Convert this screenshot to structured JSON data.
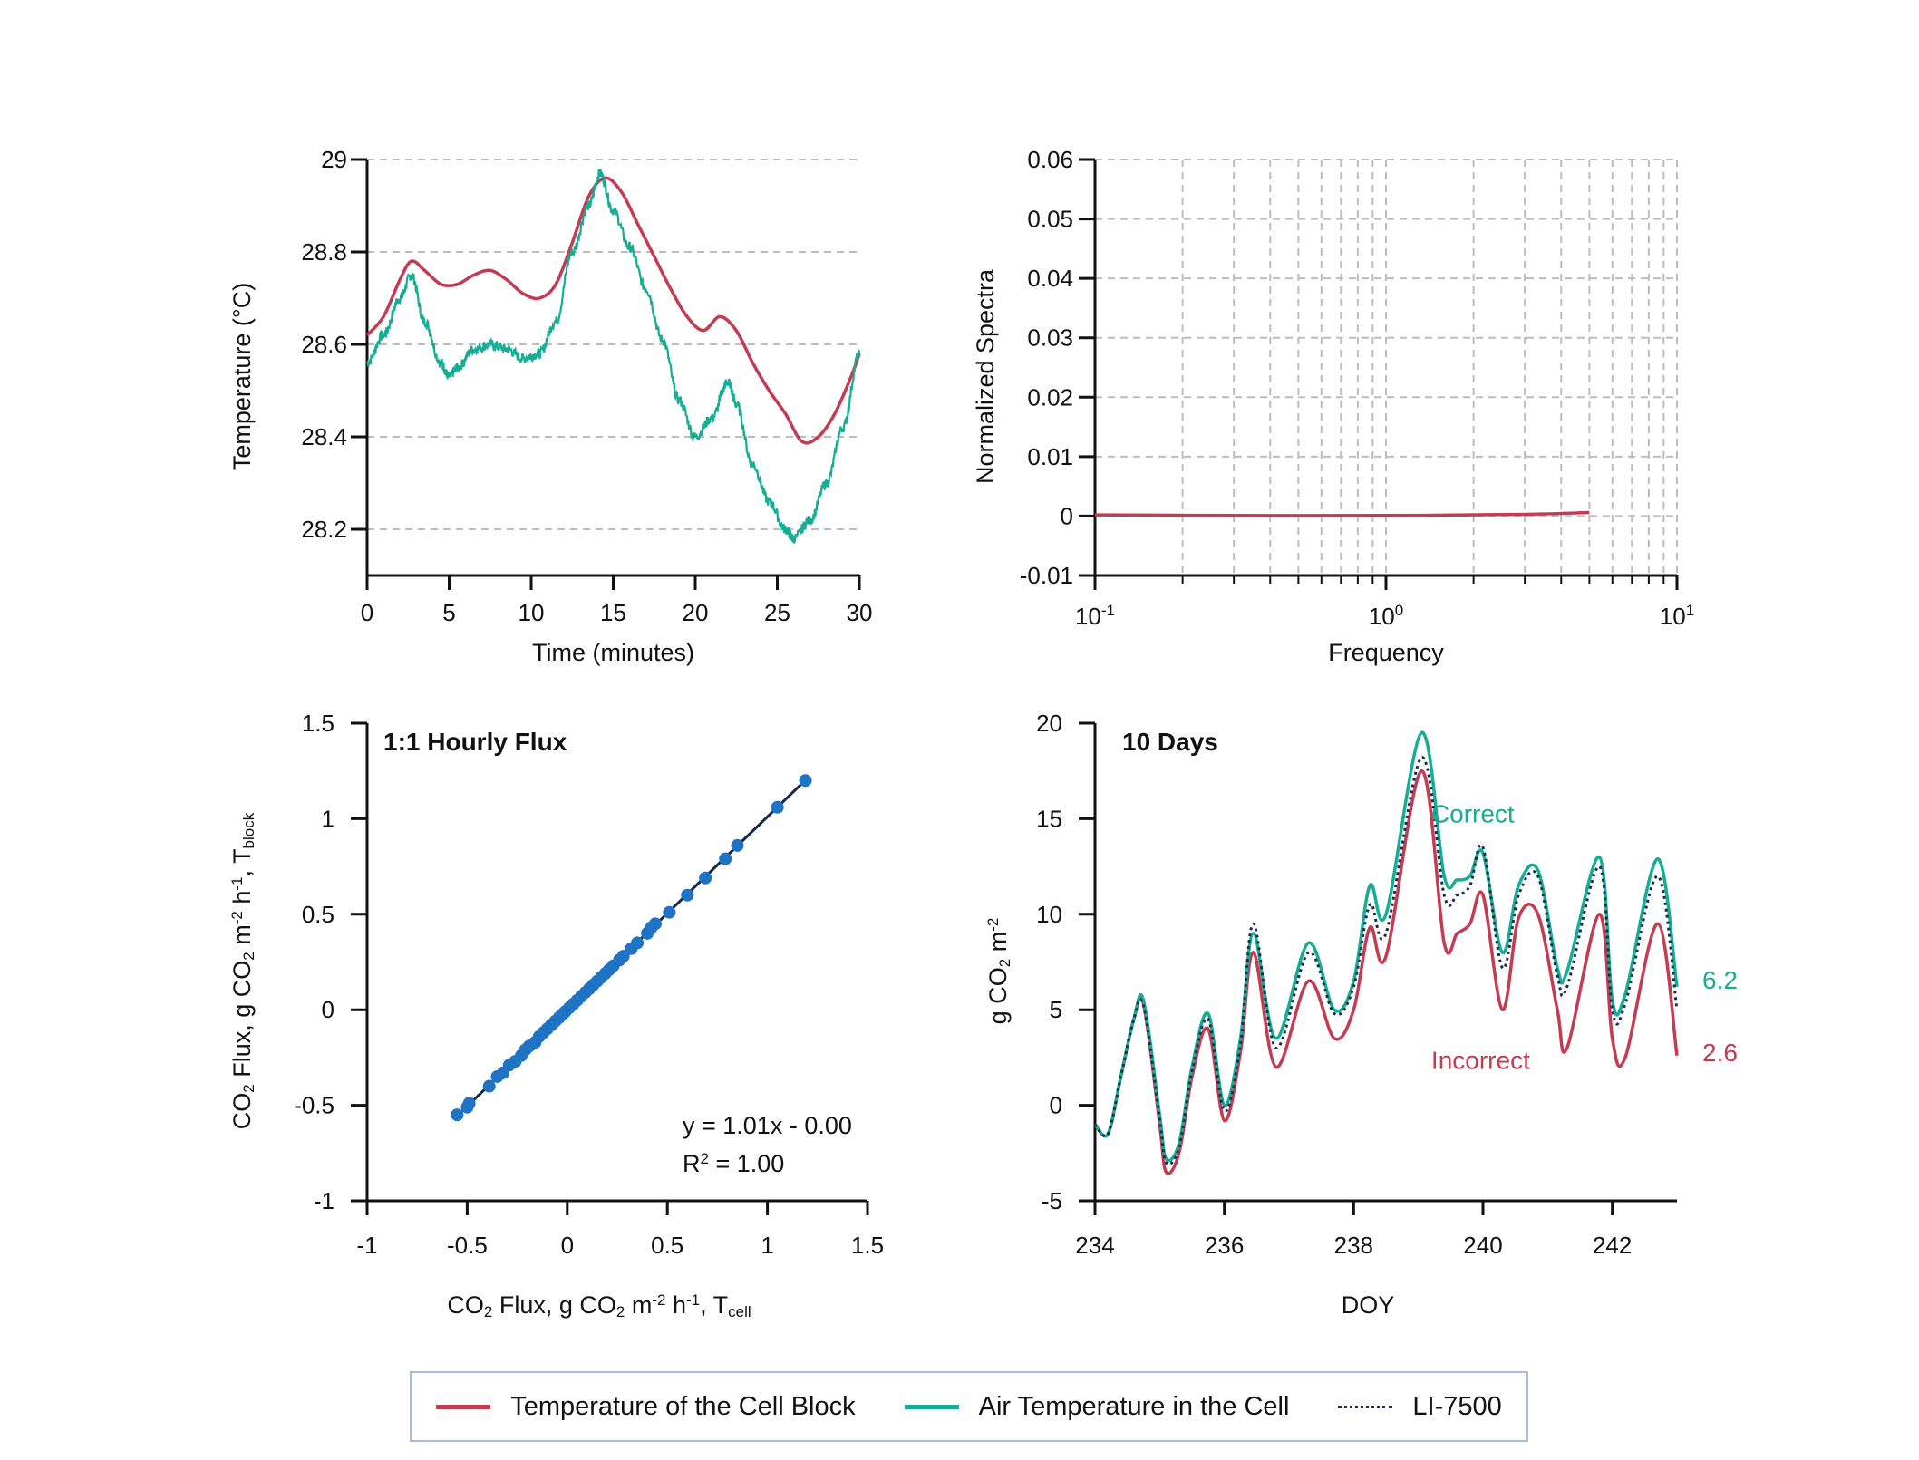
{
  "colors": {
    "block": "#c33c52",
    "cell": "#15ad94",
    "li7500": "#1b2a4e",
    "scatter": "#1f73c4",
    "grid": "#bdbdbd",
    "legend_border": "#a7bdd8"
  },
  "legend": {
    "items": [
      {
        "label": "Temperature of the Cell Block",
        "style": "solid",
        "color_key": "block"
      },
      {
        "label": "Air Temperature in the Cell",
        "style": "solid",
        "color_key": "cell"
      },
      {
        "label": "LI-7500",
        "style": "dotted",
        "color_key": "li7500"
      }
    ]
  },
  "chart_data": [
    {
      "id": "temperature",
      "type": "line",
      "title": "",
      "xlabel": "Time (minutes)",
      "ylabel": "Temperature (°C)",
      "xlim": [
        0,
        30
      ],
      "ylim": [
        28.1,
        29
      ],
      "xticks": [
        0,
        5,
        10,
        15,
        20,
        25,
        30
      ],
      "yticks": [
        28.2,
        28.4,
        28.6,
        28.8,
        29
      ],
      "ytick_labels": [
        "28.2",
        "28.4",
        "28.6",
        "28.8",
        "29"
      ],
      "grid": "horizontal-dashed",
      "series": [
        {
          "name": "Temperature of the Cell Block",
          "x": [
            0,
            1,
            2,
            2.7,
            3.5,
            4.5,
            5.5,
            6.5,
            7.5,
            8.5,
            9.5,
            10.5,
            11.5,
            12.5,
            13.5,
            14.5,
            15.5,
            16.5,
            17.5,
            18.5,
            19.5,
            20.5,
            21.5,
            22.5,
            23.5,
            24.5,
            25.5,
            26.5,
            27.5,
            28.5,
            29.5,
            30
          ],
          "y": [
            28.62,
            28.66,
            28.74,
            28.78,
            28.76,
            28.73,
            28.73,
            28.75,
            28.76,
            28.74,
            28.71,
            28.7,
            28.73,
            28.82,
            28.92,
            28.96,
            28.93,
            28.86,
            28.79,
            28.72,
            28.66,
            28.63,
            28.66,
            28.63,
            28.56,
            28.5,
            28.45,
            28.39,
            28.4,
            28.45,
            28.53,
            28.58
          ]
        },
        {
          "name": "Air Temperature in the Cell",
          "x": [
            0,
            1,
            2,
            2.7,
            3.5,
            4.5,
            5,
            5.5,
            6.5,
            7.5,
            8.5,
            9.5,
            10.5,
            11.5,
            12.5,
            13.5,
            14.2,
            15,
            16,
            17,
            18,
            19,
            20,
            21,
            22,
            22.5,
            23.5,
            24.5,
            25.5,
            26,
            27,
            28,
            29,
            30
          ],
          "y": [
            28.56,
            28.62,
            28.7,
            28.75,
            28.65,
            28.56,
            28.53,
            28.55,
            28.59,
            28.6,
            28.59,
            28.57,
            28.58,
            28.65,
            28.8,
            28.9,
            28.97,
            28.89,
            28.81,
            28.72,
            28.61,
            28.48,
            28.4,
            28.44,
            28.52,
            28.47,
            28.34,
            28.26,
            28.2,
            28.18,
            28.22,
            28.3,
            28.42,
            28.58
          ],
          "noisy": true
        }
      ]
    },
    {
      "id": "spectra",
      "type": "line",
      "title": "",
      "xlabel": "Frequency",
      "ylabel": "Normalized Spectra",
      "xscale": "log",
      "xlim": [
        0.1,
        10
      ],
      "ylim": [
        -0.01,
        0.06
      ],
      "yticks": [
        -0.01,
        0,
        0.01,
        0.02,
        0.03,
        0.04,
        0.05,
        0.06
      ],
      "ytick_labels": [
        "-0.01",
        "0",
        "0.01",
        "0.02",
        "0.03",
        "0.04",
        "0.05",
        "0.06"
      ],
      "xtick_labels": [
        {
          "base": "10",
          "exp": "-1"
        },
        {
          "base": "10",
          "exp": "0"
        },
        {
          "base": "10",
          "exp": "1"
        }
      ],
      "grid": "dashed",
      "series": [
        {
          "name": "Temperature of the Cell Block",
          "x": [
            0.1,
            0.3,
            1,
            3,
            5
          ],
          "y": [
            0.0002,
            0.0001,
            0.0001,
            0.0003,
            0.0006
          ]
        }
      ]
    },
    {
      "id": "hourly_flux",
      "type": "scatter",
      "title": "1:1 Hourly Flux",
      "xlabel": {
        "parts": [
          "CO",
          "2",
          " Flux, g CO",
          "2",
          " m",
          "-2",
          " h",
          "-1",
          ", T",
          "cell"
        ]
      },
      "ylabel": {
        "parts": [
          "CO",
          "2",
          " Flux, g CO",
          "2",
          " m",
          "-2",
          " h",
          "-1",
          ", T",
          "block"
        ]
      },
      "xlim": [
        -1,
        1.5
      ],
      "ylim": [
        -1,
        1.5
      ],
      "xticks": [
        -1,
        -0.5,
        0,
        0.5,
        1,
        1.5
      ],
      "yticks": [
        -1,
        -0.5,
        0,
        0.5,
        1,
        1.5
      ],
      "xtick_labels": [
        "-1",
        "-0.5",
        "0",
        "0.5",
        "1",
        "1.5"
      ],
      "ytick_labels": [
        "-1",
        "-0.5",
        "0",
        "0.5",
        "1",
        "1.5"
      ],
      "equation": "y = 1.01x - 0.00",
      "r2": {
        "label": "R",
        "exp": "2",
        "value": " = 1.00"
      },
      "fit": {
        "slope": 1.01,
        "intercept": 0.0,
        "x": [
          -0.55,
          1.19
        ]
      },
      "x": [
        -0.55,
        -0.5,
        -0.49,
        -0.39,
        -0.35,
        -0.32,
        -0.29,
        -0.26,
        -0.23,
        -0.21,
        -0.19,
        -0.16,
        -0.14,
        -0.12,
        -0.1,
        -0.08,
        -0.06,
        -0.04,
        -0.02,
        -0.01,
        0.01,
        0.03,
        0.05,
        0.07,
        0.09,
        0.11,
        0.13,
        0.15,
        0.17,
        0.19,
        0.21,
        0.23,
        0.26,
        0.28,
        0.32,
        0.35,
        0.4,
        0.42,
        0.44,
        0.51,
        0.6,
        0.69,
        0.79,
        0.85,
        1.05,
        1.19
      ],
      "y": [
        -0.55,
        -0.51,
        -0.49,
        -0.4,
        -0.35,
        -0.33,
        -0.29,
        -0.27,
        -0.24,
        -0.21,
        -0.19,
        -0.17,
        -0.14,
        -0.12,
        -0.1,
        -0.08,
        -0.06,
        -0.04,
        -0.02,
        -0.01,
        0.01,
        0.03,
        0.05,
        0.07,
        0.09,
        0.11,
        0.13,
        0.15,
        0.17,
        0.19,
        0.21,
        0.23,
        0.26,
        0.28,
        0.32,
        0.35,
        0.4,
        0.43,
        0.45,
        0.51,
        0.6,
        0.69,
        0.79,
        0.86,
        1.06,
        1.2
      ]
    },
    {
      "id": "ten_days",
      "type": "line",
      "title": "10 Days",
      "xlabel": "DOY",
      "ylabel": {
        "parts": [
          "g CO",
          "2",
          " m",
          "-2"
        ]
      },
      "xlim": [
        234,
        243
      ],
      "ylim": [
        -5,
        20
      ],
      "xticks": [
        234,
        236,
        238,
        240,
        242
      ],
      "yticks": [
        -5,
        0,
        5,
        10,
        15,
        20
      ],
      "series": [
        {
          "name": "Air Temperature in the Cell",
          "label": "Correct",
          "end_value": "6.2",
          "x": [
            234,
            234.2,
            234.4,
            234.6,
            234.75,
            235.0,
            235.1,
            235.3,
            235.5,
            235.75,
            236.0,
            236.25,
            236.45,
            236.8,
            237.3,
            237.7,
            238.0,
            238.25,
            238.5,
            239.05,
            239.4,
            239.6,
            239.8,
            240.0,
            240.3,
            240.55,
            240.85,
            241.15,
            241.3,
            241.8,
            242.0,
            242.2,
            242.7,
            243.0
          ],
          "y": [
            -1.0,
            -1.5,
            1.5,
            4.5,
            5.5,
            -0.5,
            -2.8,
            -2.0,
            2.0,
            4.8,
            0.0,
            3.5,
            9.0,
            3.5,
            8.5,
            5.0,
            6.5,
            11.5,
            10.0,
            19.5,
            12.0,
            11.8,
            12.0,
            13.2,
            8.0,
            11.5,
            12.3,
            7.2,
            7.0,
            13.0,
            5.5,
            5.8,
            12.9,
            6.2
          ]
        },
        {
          "name": "Temperature of the Cell Block",
          "label": "Incorrect",
          "end_value": "2.6",
          "x": [
            234,
            234.2,
            234.4,
            234.6,
            234.75,
            235.0,
            235.1,
            235.3,
            235.5,
            235.75,
            236.0,
            236.25,
            236.45,
            236.8,
            237.3,
            237.7,
            238.0,
            238.25,
            238.5,
            239.05,
            239.4,
            239.6,
            239.8,
            240.0,
            240.3,
            240.55,
            240.85,
            241.15,
            241.3,
            241.8,
            242.0,
            242.2,
            242.7,
            243.0
          ],
          "y": [
            -1.0,
            -1.5,
            1.5,
            4.5,
            5.3,
            -1.0,
            -3.5,
            -2.5,
            1.5,
            4.0,
            -0.8,
            2.8,
            8.0,
            2.0,
            6.5,
            3.5,
            5.0,
            9.3,
            7.8,
            17.5,
            8.5,
            9.0,
            9.5,
            11.0,
            5.0,
            9.8,
            10.0,
            5.0,
            3.0,
            10.0,
            3.5,
            2.5,
            9.5,
            2.6
          ]
        },
        {
          "name": "LI-7500",
          "dotted": true,
          "x": [
            234,
            234.2,
            234.4,
            234.6,
            234.75,
            235.0,
            235.1,
            235.3,
            235.5,
            235.75,
            236.0,
            236.25,
            236.45,
            236.8,
            237.3,
            237.7,
            238.0,
            238.25,
            238.5,
            239.05,
            239.4,
            239.6,
            239.8,
            240.0,
            240.3,
            240.55,
            240.85,
            241.15,
            241.3,
            241.8,
            242.0,
            242.2,
            242.7,
            243.0
          ],
          "y": [
            -1.0,
            -1.5,
            1.5,
            4.5,
            5.2,
            -0.7,
            -3.0,
            -2.2,
            1.8,
            4.5,
            -0.3,
            3.2,
            9.5,
            3.0,
            8.0,
            4.8,
            6.2,
            10.5,
            9.0,
            18.2,
            11.0,
            11.0,
            11.5,
            13.5,
            7.2,
            11.0,
            12.0,
            6.8,
            6.2,
            12.5,
            5.0,
            5.3,
            12.0,
            5.0
          ]
        }
      ]
    }
  ]
}
